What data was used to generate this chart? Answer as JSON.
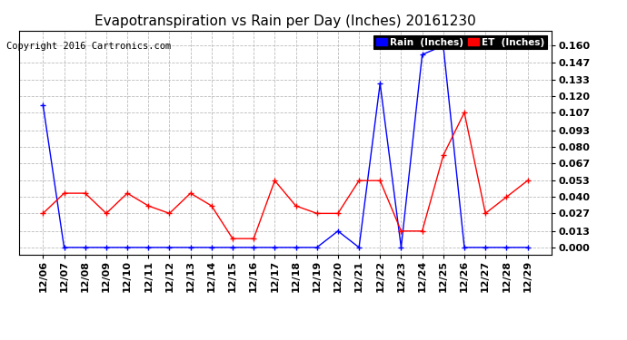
{
  "title": "Evapotranspiration vs Rain per Day (Inches) 20161230",
  "copyright": "Copyright 2016 Cartronics.com",
  "x_labels": [
    "12/06",
    "12/07",
    "12/08",
    "12/09",
    "12/10",
    "12/11",
    "12/12",
    "12/13",
    "12/14",
    "12/15",
    "12/16",
    "12/17",
    "12/18",
    "12/19",
    "12/20",
    "12/21",
    "12/22",
    "12/23",
    "12/24",
    "12/25",
    "12/26",
    "12/27",
    "12/28",
    "12/29"
  ],
  "rain_inches": [
    0.113,
    0.0,
    0.0,
    0.0,
    0.0,
    0.0,
    0.0,
    0.0,
    0.0,
    0.0,
    0.0,
    0.0,
    0.0,
    0.0,
    0.013,
    0.0,
    0.13,
    0.0,
    0.153,
    0.16,
    0.0,
    0.0,
    0.0,
    0.0
  ],
  "et_inches": [
    0.027,
    0.043,
    0.043,
    0.027,
    0.043,
    0.033,
    0.027,
    0.043,
    0.033,
    0.007,
    0.007,
    0.053,
    0.033,
    0.027,
    0.027,
    0.053,
    0.053,
    0.013,
    0.013,
    0.073,
    0.107,
    0.027,
    0.04,
    0.053
  ],
  "rain_color": "#0000ff",
  "et_color": "#ff0000",
  "background_color": "#ffffff",
  "grid_color": "#bbbbbb",
  "title_fontsize": 11,
  "copyright_fontsize": 7.5,
  "yticks": [
    0.0,
    0.013,
    0.027,
    0.04,
    0.053,
    0.067,
    0.08,
    0.093,
    0.107,
    0.12,
    0.133,
    0.147,
    0.16
  ],
  "ylim": [
    -0.006,
    0.172
  ],
  "legend_rain_bg": "#0000ff",
  "legend_et_bg": "#ff0000",
  "tick_fontsize": 8,
  "tick_fontweight": "bold"
}
